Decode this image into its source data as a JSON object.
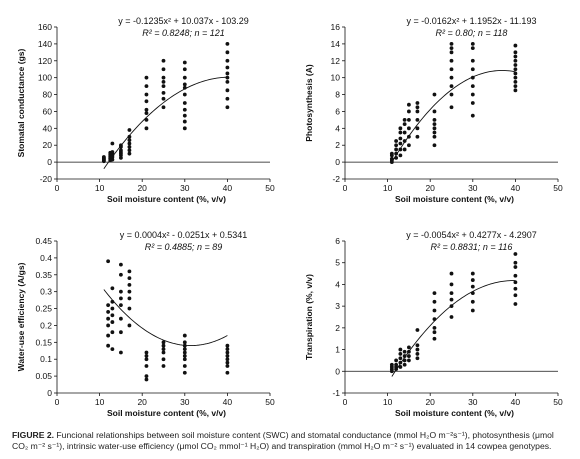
{
  "chart_data": [
    {
      "type": "scatter",
      "equation": "y = -0.1235x² + 10.037x - 103.29",
      "stats": "R² = 0.8248; n = 121",
      "xlabel": "Soil moisture content (%, v/v)",
      "ylabel": "Stomatal conductance (gs)",
      "xlim": [
        0,
        50
      ],
      "ylim": [
        -20,
        160
      ],
      "xticks": [
        0,
        10,
        20,
        30,
        40,
        50
      ],
      "yticks": [
        -20,
        0,
        20,
        40,
        60,
        80,
        100,
        120,
        140,
        160
      ],
      "trend": {
        "a": -0.1235,
        "b": 10.037,
        "c": -103.29,
        "xmin": 11,
        "xmax": 40
      },
      "groups": [
        {
          "x": 11,
          "y": [
            1,
            2,
            3,
            4,
            5,
            6
          ]
        },
        {
          "x": 12.5,
          "y": [
            2,
            4,
            5,
            7,
            9,
            11
          ]
        },
        {
          "x": 13,
          "y": [
            3,
            6,
            8,
            10,
            12,
            22
          ]
        },
        {
          "x": 15,
          "y": [
            5,
            8,
            10,
            12,
            14,
            18,
            20
          ]
        },
        {
          "x": 17,
          "y": [
            10,
            14,
            18,
            22,
            26,
            30,
            38
          ]
        },
        {
          "x": 21,
          "y": [
            40,
            50,
            58,
            62,
            72,
            80,
            90,
            100
          ]
        },
        {
          "x": 25,
          "y": [
            65,
            75,
            82,
            90,
            95,
            100,
            110,
            120
          ]
        },
        {
          "x": 30,
          "y": [
            40,
            48,
            55,
            62,
            70,
            80,
            88,
            92,
            100,
            110,
            118
          ]
        },
        {
          "x": 40,
          "y": [
            65,
            75,
            85,
            95,
            100,
            105,
            112,
            120,
            130,
            140
          ]
        }
      ]
    },
    {
      "type": "scatter",
      "equation": "y = -0.0162x² + 1.1952x - 11.193",
      "stats": "R² = 0.80; n = 118",
      "xlabel": "Soil moisture content (%, v/v)",
      "ylabel": "Photosynthesis (A)",
      "xlim": [
        0,
        50
      ],
      "ylim": [
        -2,
        16
      ],
      "xticks": [
        0,
        10,
        20,
        30,
        40,
        50
      ],
      "yticks": [
        -2,
        0,
        2,
        4,
        6,
        8,
        10,
        12,
        14,
        16
      ],
      "trend": {
        "a": -0.0162,
        "b": 1.1952,
        "c": -11.193,
        "xmin": 11,
        "xmax": 40
      },
      "groups": [
        {
          "x": 11,
          "y": [
            0,
            0.2,
            0.4,
            0.8,
            1.0
          ]
        },
        {
          "x": 12,
          "y": [
            0.5,
            1.0,
            1.5,
            2.0,
            2.5
          ]
        },
        {
          "x": 13,
          "y": [
            0.8,
            1.5,
            2.2,
            2.8,
            3.5,
            4.0
          ]
        },
        {
          "x": 14,
          "y": [
            1.5,
            2.5,
            3.5,
            4.5,
            5.0
          ]
        },
        {
          "x": 15,
          "y": [
            2.0,
            3.0,
            4.0,
            5.0,
            6.0,
            6.8
          ]
        },
        {
          "x": 17,
          "y": [
            3.0,
            4.0,
            5.0,
            6.0,
            6.5,
            7.0
          ]
        },
        {
          "x": 21,
          "y": [
            2.0,
            3.0,
            3.5,
            4.0,
            4.5,
            5.0,
            6.0,
            8.0
          ]
        },
        {
          "x": 25,
          "y": [
            6.5,
            8.0,
            9.0,
            10.0,
            11.0,
            12.0,
            13.0,
            13.5,
            14.0
          ]
        },
        {
          "x": 30,
          "y": [
            5.5,
            7.0,
            8.0,
            9.0,
            10.0,
            11.0,
            12.0,
            13.5,
            14.0
          ]
        },
        {
          "x": 40,
          "y": [
            8.5,
            9.0,
            9.5,
            10.0,
            10.5,
            11.0,
            11.5,
            12.0,
            12.5,
            13.0,
            13.8
          ]
        }
      ]
    },
    {
      "type": "scatter",
      "equation": "y = 0.0004x² - 0.0251x + 0.5341",
      "stats": "R² = 0.4885; n = 89",
      "xlabel": "Soil moisture content (%, v/v)",
      "ylabel": "Water-use efficiency (A/gs)",
      "xlim": [
        0,
        50
      ],
      "ylim": [
        0,
        0.45
      ],
      "xticks": [
        0,
        10,
        20,
        30,
        40,
        50
      ],
      "yticks": [
        0,
        0.05,
        0.1,
        0.15,
        0.2,
        0.25,
        0.3,
        0.35,
        0.4,
        0.45
      ],
      "trend": {
        "a": 0.0004,
        "b": -0.0251,
        "c": 0.5341,
        "xmin": 11,
        "xmax": 40
      },
      "groups": [
        {
          "x": 12,
          "y": [
            0.14,
            0.17,
            0.2,
            0.22,
            0.24,
            0.26,
            0.39
          ]
        },
        {
          "x": 13,
          "y": [
            0.13,
            0.18,
            0.21,
            0.23,
            0.25,
            0.27,
            0.31
          ]
        },
        {
          "x": 15,
          "y": [
            0.12,
            0.18,
            0.22,
            0.26,
            0.28,
            0.3,
            0.35,
            0.38
          ]
        },
        {
          "x": 17,
          "y": [
            0.2,
            0.25,
            0.28,
            0.3,
            0.32,
            0.34,
            0.36
          ]
        },
        {
          "x": 21,
          "y": [
            0.04,
            0.05,
            0.08,
            0.1,
            0.11,
            0.12
          ]
        },
        {
          "x": 25,
          "y": [
            0.08,
            0.1,
            0.12,
            0.13,
            0.14,
            0.15
          ]
        },
        {
          "x": 30,
          "y": [
            0.06,
            0.08,
            0.1,
            0.11,
            0.12,
            0.13,
            0.14,
            0.15,
            0.17
          ]
        },
        {
          "x": 40,
          "y": [
            0.06,
            0.08,
            0.09,
            0.1,
            0.11,
            0.12,
            0.13,
            0.14
          ]
        }
      ]
    },
    {
      "type": "scatter",
      "equation": "y = -0.0054x² + 0.4277x - 4.2907",
      "stats": "R² = 0.8831; n = 116",
      "xlabel": "Soil moisture content (%, v/v)",
      "ylabel": "Transpiration (%, v/v)",
      "xlim": [
        0,
        50
      ],
      "ylim": [
        -1,
        6
      ],
      "xticks": [
        0,
        10,
        20,
        30,
        40,
        50
      ],
      "yticks": [
        -1,
        0,
        1,
        2,
        3,
        4,
        5,
        6
      ],
      "trend": {
        "a": -0.0054,
        "b": 0.4277,
        "c": -4.2907,
        "xmin": 11,
        "xmax": 40
      },
      "groups": [
        {
          "x": 11,
          "y": [
            0,
            0.1,
            0.2,
            0.3
          ]
        },
        {
          "x": 12,
          "y": [
            0.1,
            0.2,
            0.3,
            0.5
          ]
        },
        {
          "x": 13,
          "y": [
            0.2,
            0.4,
            0.6,
            0.8,
            1.0
          ]
        },
        {
          "x": 14,
          "y": [
            0.3,
            0.5,
            0.7,
            0.9
          ]
        },
        {
          "x": 15,
          "y": [
            0.5,
            0.7,
            0.9,
            1.1
          ]
        },
        {
          "x": 17,
          "y": [
            0.6,
            0.8,
            1.0,
            1.2,
            1.9
          ]
        },
        {
          "x": 21,
          "y": [
            1.5,
            1.8,
            2.0,
            2.4,
            2.8,
            3.2,
            3.6
          ]
        },
        {
          "x": 25,
          "y": [
            2.5,
            3.0,
            3.3,
            3.6,
            4.0,
            4.5
          ]
        },
        {
          "x": 30,
          "y": [
            2.8,
            3.2,
            3.6,
            3.9,
            4.2,
            4.5
          ]
        },
        {
          "x": 40,
          "y": [
            3.1,
            3.5,
            3.8,
            4.1,
            4.4,
            4.8,
            5.0,
            5.4
          ]
        }
      ]
    }
  ],
  "caption": {
    "lead": "FIGURE 2.",
    "text": "Funcional relationships between soil moisture content (SWC) and stomatal conductance (mmol H₂O m⁻²s⁻¹), photosynthesis (μmol CO₂ m⁻² s⁻¹), intrinsic water-use efficiency (μmol CO₂ mmol⁻¹ H₂O) and transpiration (mmol H₂O m⁻² s⁻¹) evaluated in 14 cowpea genotypes."
  }
}
